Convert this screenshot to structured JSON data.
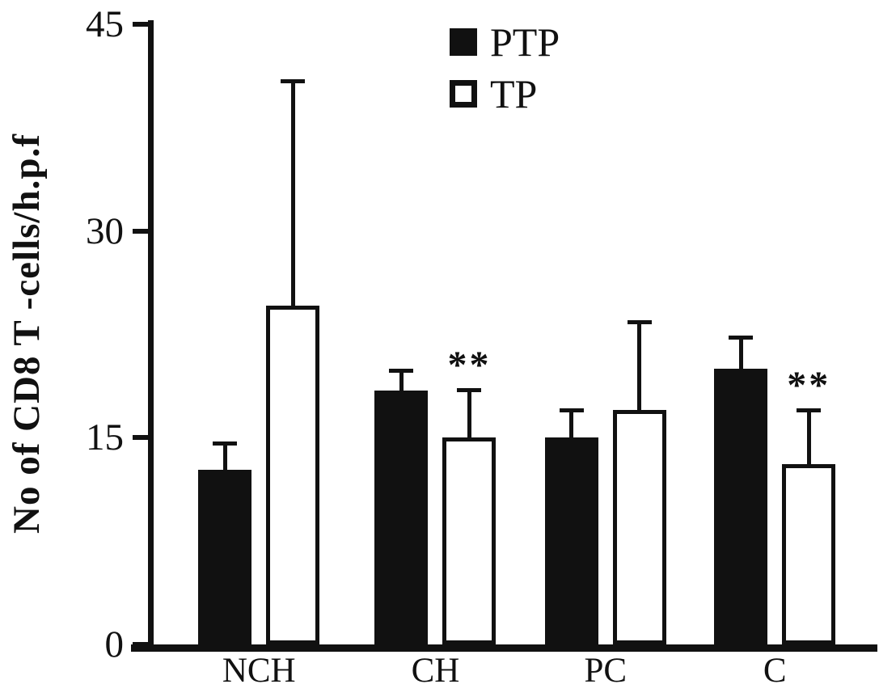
{
  "chart_data": {
    "type": "bar",
    "title": "",
    "xlabel": "",
    "ylabel": "No of CD8 T -cells/h.p.f",
    "ylim": [
      0,
      45
    ],
    "yticks": [
      0,
      15,
      30,
      45
    ],
    "categories": [
      "NCH",
      "CH",
      "PC",
      "C"
    ],
    "series": [
      {
        "name": "PTP",
        "fill": "#111111",
        "style": "filled",
        "values": [
          12.7,
          18.4,
          15.0,
          20.0
        ],
        "errors": [
          1.9,
          1.5,
          2.0,
          2.3
        ]
      },
      {
        "name": "TP",
        "fill": "#ffffff",
        "style": "open",
        "values": [
          24.6,
          15.0,
          17.0,
          13.1
        ],
        "errors": [
          16.3,
          3.5,
          6.4,
          3.9
        ]
      }
    ],
    "annotations": [
      {
        "category": "CH",
        "series": "TP",
        "text": "**"
      },
      {
        "category": "C",
        "series": "TP",
        "text": "**"
      }
    ],
    "legend_position": "top-center",
    "grid": false
  },
  "legend": {
    "items": [
      {
        "label": "PTP",
        "swatch": "filled"
      },
      {
        "label": "TP",
        "swatch": "open"
      }
    ]
  },
  "colors": {
    "axis": "#111111",
    "bar_filled": "#111111",
    "bar_open": "#ffffff",
    "background": "#ffffff"
  }
}
